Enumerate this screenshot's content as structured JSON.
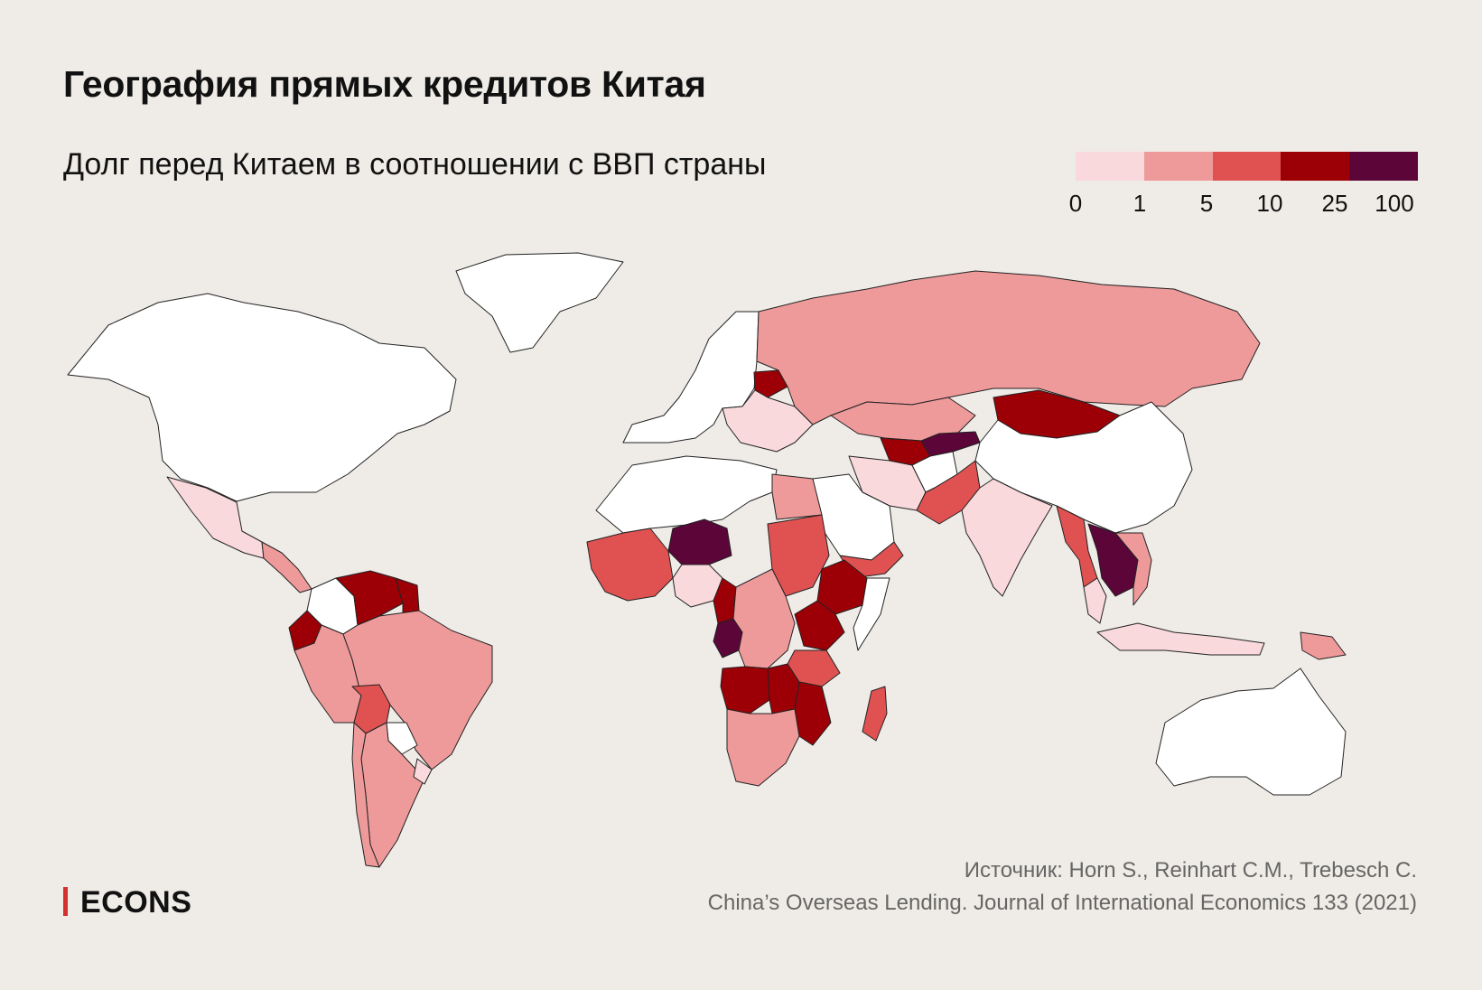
{
  "title": "География прямых кредитов Китая",
  "subtitle": "Долг перед Китаем в соотношении с ВВП страны",
  "legend": {
    "colors": [
      "#f9d9dc",
      "#ef9a9a",
      "#e05252",
      "#9c0006",
      "#5b0539"
    ],
    "labels": [
      "0",
      "1",
      "5",
      "10",
      "25",
      "100"
    ]
  },
  "source": {
    "line1": "Источник: Horn S., Reinhart C.M., Trebesch C.",
    "line2": "China’s Overseas Lending. Journal of International Economics 133 (2021)"
  },
  "brand": "ECONS",
  "map_data": {
    "no_data_color": "#ffffff",
    "bins": [
      "0–1",
      "1–5",
      "5–10",
      "10–25",
      "25–100"
    ],
    "regions": [
      {
        "id": "north-america",
        "bin": "none"
      },
      {
        "id": "greenland",
        "bin": "none"
      },
      {
        "id": "mexico",
        "bin": "0–1"
      },
      {
        "id": "central-america",
        "bin": "1–5"
      },
      {
        "id": "colombia",
        "bin": "none"
      },
      {
        "id": "venezuela",
        "bin": "10–25"
      },
      {
        "id": "guyana",
        "bin": "10–25"
      },
      {
        "id": "ecuador",
        "bin": "10–25"
      },
      {
        "id": "peru",
        "bin": "1–5"
      },
      {
        "id": "brazil",
        "bin": "1–5"
      },
      {
        "id": "bolivia",
        "bin": "5–10"
      },
      {
        "id": "paraguay",
        "bin": "none"
      },
      {
        "id": "argentina",
        "bin": "1–5"
      },
      {
        "id": "chile",
        "bin": "1–5"
      },
      {
        "id": "uruguay",
        "bin": "0–1"
      },
      {
        "id": "western-europe",
        "bin": "none"
      },
      {
        "id": "belarus",
        "bin": "10–25"
      },
      {
        "id": "eastern-europe",
        "bin": "0–1"
      },
      {
        "id": "russia",
        "bin": "1–5"
      },
      {
        "id": "kazakhstan",
        "bin": "1–5"
      },
      {
        "id": "turkmenistan",
        "bin": "10–25"
      },
      {
        "id": "kyrgyzstan-tajikistan",
        "bin": "25–100"
      },
      {
        "id": "mongolia",
        "bin": "10–25"
      },
      {
        "id": "china",
        "bin": "none"
      },
      {
        "id": "iran",
        "bin": "0–1"
      },
      {
        "id": "afghanistan",
        "bin": "none"
      },
      {
        "id": "pakistan",
        "bin": "5–10"
      },
      {
        "id": "india",
        "bin": "0–1"
      },
      {
        "id": "arabian-peninsula",
        "bin": "none"
      },
      {
        "id": "yemen-oman",
        "bin": "5–10"
      },
      {
        "id": "myanmar",
        "bin": "5–10"
      },
      {
        "id": "laos-cambodia",
        "bin": "25–100"
      },
      {
        "id": "thailand",
        "bin": "0–1"
      },
      {
        "id": "vietnam",
        "bin": "1–5"
      },
      {
        "id": "indonesia",
        "bin": "0–1"
      },
      {
        "id": "papua-new-guinea",
        "bin": "1–5"
      },
      {
        "id": "australia",
        "bin": "none"
      },
      {
        "id": "north-africa",
        "bin": "none"
      },
      {
        "id": "west-africa",
        "bin": "5–10"
      },
      {
        "id": "niger",
        "bin": "25–100"
      },
      {
        "id": "nigeria",
        "bin": "0–1"
      },
      {
        "id": "cameroon",
        "bin": "10–25"
      },
      {
        "id": "egypt",
        "bin": "1–5"
      },
      {
        "id": "sudan",
        "bin": "5–10"
      },
      {
        "id": "ethiopia",
        "bin": "10–25"
      },
      {
        "id": "kenya",
        "bin": "10–25"
      },
      {
        "id": "somalia",
        "bin": "none"
      },
      {
        "id": "congo",
        "bin": "25–100"
      },
      {
        "id": "dr-congo",
        "bin": "1–5"
      },
      {
        "id": "tanzania",
        "bin": "5–10"
      },
      {
        "id": "angola",
        "bin": "10–25"
      },
      {
        "id": "zambia",
        "bin": "10–25"
      },
      {
        "id": "mozambique",
        "bin": "10–25"
      },
      {
        "id": "southern-africa",
        "bin": "1–5"
      },
      {
        "id": "madagascar",
        "bin": "5–10"
      }
    ]
  }
}
